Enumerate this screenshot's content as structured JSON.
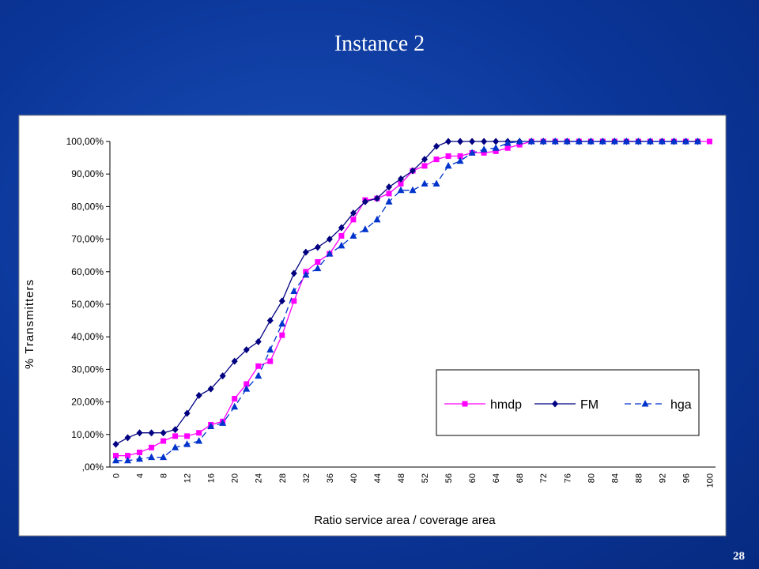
{
  "slide_title": "Instance 2",
  "slide_number": "28",
  "chart_data": {
    "type": "line",
    "xlabel": "Ratio service area / coverage area",
    "ylabel": "% Transmitters",
    "categories": [
      "0",
      null,
      "4",
      null,
      "8",
      null,
      "12",
      null,
      "16",
      null,
      "20",
      null,
      "24",
      null,
      "28",
      null,
      "32",
      null,
      "36",
      null,
      "40",
      null,
      "44",
      null,
      "48",
      null,
      "52",
      null,
      "56",
      null,
      "60",
      null,
      "64",
      null,
      "68",
      null,
      "72",
      null,
      "76",
      null,
      "80",
      null,
      "84",
      null,
      "88",
      null,
      "92",
      null,
      "96",
      null,
      "100"
    ],
    "ylim": [
      0,
      100
    ],
    "yticks": [
      {
        "value": 0,
        "label": ",00%"
      },
      {
        "value": 10,
        "label": "10,00%"
      },
      {
        "value": 20,
        "label": "20,00%"
      },
      {
        "value": 30,
        "label": "30,00%"
      },
      {
        "value": 40,
        "label": "40,00%"
      },
      {
        "value": 50,
        "label": "50,00%"
      },
      {
        "value": 60,
        "label": "60,00%"
      },
      {
        "value": 70,
        "label": "70,00%"
      },
      {
        "value": 80,
        "label": "80,00%"
      },
      {
        "value": 90,
        "label": "90,00%"
      },
      {
        "value": 100,
        "label": "100,00%"
      }
    ],
    "grid": false,
    "series": [
      {
        "name": "hmdp",
        "color": "#ff00ff",
        "marker": "square",
        "dashed": false,
        "values": [
          3.5,
          3.5,
          4.5,
          6,
          8,
          9.5,
          9.5,
          10.5,
          13,
          14,
          21,
          25.5,
          31,
          32.5,
          40.5,
          51,
          60,
          63,
          65.5,
          71,
          76,
          82,
          82.5,
          84,
          87,
          91,
          92.5,
          94.5,
          95.5,
          95.5,
          96.5,
          96.5,
          97,
          98,
          99,
          100,
          100,
          100,
          100,
          100,
          100,
          100,
          100,
          100,
          100,
          100,
          100,
          100,
          100,
          100,
          100
        ]
      },
      {
        "name": "FM",
        "color": "#000080",
        "marker": "diamond",
        "dashed": false,
        "values": [
          7,
          9,
          10.5,
          10.5,
          10.5,
          11.5,
          16.5,
          22,
          24,
          28,
          32.5,
          36,
          38.5,
          45,
          51,
          59.5,
          66,
          67.5,
          70,
          73.5,
          78,
          81.5,
          82.5,
          86,
          88.5,
          91,
          94.5,
          98.5,
          100,
          100,
          100,
          100,
          100,
          100,
          100,
          100,
          100,
          100,
          100,
          100,
          100,
          100,
          100,
          100,
          100,
          100,
          100,
          100,
          100,
          100,
          null
        ]
      },
      {
        "name": "hga",
        "color": "#0033cc",
        "marker": "triangle",
        "dashed": true,
        "values": [
          2,
          2,
          2.5,
          3,
          3,
          6,
          7,
          8,
          12.5,
          13.5,
          18.5,
          24,
          28,
          36,
          44,
          54,
          59,
          61,
          65.5,
          68,
          71,
          73,
          76,
          81.5,
          85,
          85,
          87,
          87,
          92.5,
          94,
          96.5,
          97.5,
          98,
          99.5,
          100,
          100,
          100,
          100,
          100,
          100,
          100,
          100,
          100,
          100,
          100,
          100,
          100,
          100,
          100,
          100,
          null
        ]
      }
    ]
  }
}
